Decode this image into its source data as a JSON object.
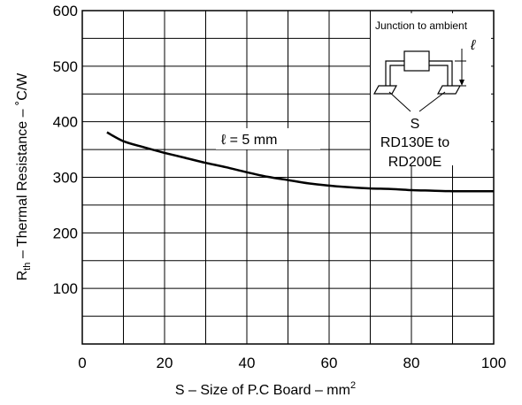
{
  "chart_data": {
    "type": "line",
    "xlabel": "S – Size of P.C Board – mm",
    "xlabel_sup": "2",
    "ylabel_prefix": "R",
    "ylabel_sub": "th",
    "ylabel_rest": " – Thermal Resistance – ˚C/W",
    "xlim": [
      0,
      100
    ],
    "ylim": [
      0,
      600
    ],
    "grid": true,
    "x_ticks": [
      0,
      20,
      40,
      60,
      80,
      100
    ],
    "y_ticks": [
      100,
      200,
      300,
      400,
      500,
      600
    ],
    "series": [
      {
        "x": [
          6,
          10,
          15,
          20,
          25,
          30,
          35,
          40,
          45,
          50,
          55,
          60,
          65,
          70,
          75,
          80,
          85,
          90,
          95,
          100
        ],
        "y": [
          381,
          365,
          354,
          344,
          335,
          326,
          318,
          309,
          301,
          295,
          289,
          285,
          282,
          280,
          279,
          277,
          276,
          275,
          275,
          275
        ],
        "color": "#000000"
      }
    ],
    "annotations": {
      "curve_label": "ℓ = 5 mm",
      "inset_title": "Junction to ambient",
      "inset_ell": "ℓ",
      "inset_s": "S",
      "inset_parts_line1": "RD130E to",
      "inset_parts_line2": "RD200E"
    }
  }
}
